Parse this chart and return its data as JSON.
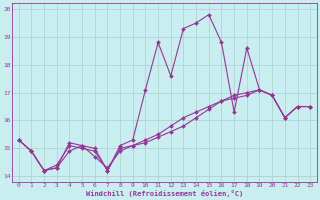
{
  "xlabel": "Windchill (Refroidissement éolien,°C)",
  "bg_color": "#c8eef0",
  "grid_color": "#aacccc",
  "line_color": "#993399",
  "marker": "D",
  "marker_size": 2.0,
  "line_width": 0.8,
  "xlim": [
    -0.5,
    23.5
  ],
  "ylim": [
    13.8,
    20.2
  ],
  "xticks": [
    0,
    1,
    2,
    3,
    4,
    5,
    6,
    7,
    8,
    9,
    10,
    11,
    12,
    13,
    14,
    15,
    16,
    17,
    18,
    19,
    20,
    21,
    22,
    23
  ],
  "yticks": [
    14,
    15,
    16,
    17,
    18,
    19,
    20
  ],
  "lines": [
    {
      "x": [
        0,
        1,
        2,
        3,
        4,
        5,
        6,
        7,
        8,
        9,
        10,
        11,
        12,
        13,
        14,
        15,
        16,
        17,
        18,
        19,
        20,
        21,
        22,
        23
      ],
      "y": [
        15.3,
        14.9,
        14.2,
        14.3,
        15.2,
        15.1,
        15.0,
        14.2,
        15.1,
        15.3,
        17.1,
        18.8,
        17.6,
        19.3,
        19.5,
        19.8,
        18.8,
        16.3,
        18.6,
        17.1,
        16.9,
        16.1,
        16.5,
        16.5
      ]
    },
    {
      "x": [
        0,
        1,
        2,
        3,
        4,
        5,
        6,
        7,
        8,
        9,
        10,
        11,
        12,
        13,
        14,
        15,
        16,
        17,
        18,
        19,
        20,
        21,
        22,
        23
      ],
      "y": [
        15.3,
        14.9,
        14.2,
        14.3,
        14.9,
        15.1,
        14.7,
        14.3,
        14.9,
        15.1,
        15.3,
        15.5,
        15.8,
        16.1,
        16.3,
        16.5,
        16.7,
        16.8,
        16.9,
        17.1,
        16.9,
        16.1,
        16.5,
        16.5
      ]
    },
    {
      "x": [
        0,
        1,
        2,
        3,
        4,
        5,
        6,
        7,
        8,
        9,
        10,
        11,
        12,
        13,
        14,
        15,
        16,
        17,
        18,
        19,
        20,
        21,
        22,
        23
      ],
      "y": [
        15.3,
        14.9,
        14.2,
        14.4,
        15.1,
        15.0,
        14.9,
        14.2,
        15.0,
        15.1,
        15.2,
        15.4,
        15.6,
        15.8,
        16.1,
        16.4,
        16.7,
        16.9,
        17.0,
        17.1,
        16.9,
        16.1,
        16.5,
        16.5
      ]
    }
  ]
}
